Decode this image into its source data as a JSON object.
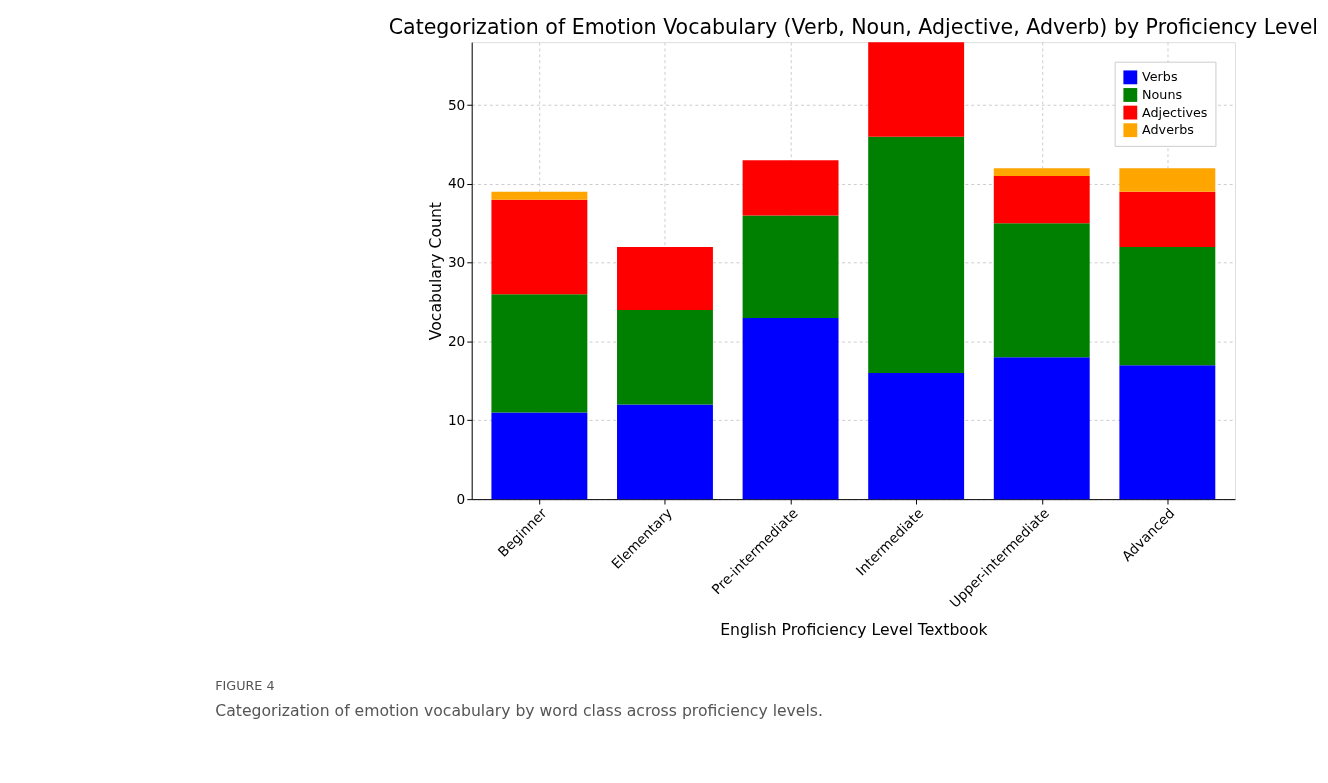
{
  "chart_data": {
    "type": "bar",
    "stacked": true,
    "title": "Categorization of Emotion Vocabulary (Verb, Noun, Adjective, Adverb) by Proficiency Level",
    "xlabel": "English Proficiency Level Textbook",
    "ylabel": "Vocabulary Count",
    "categories": [
      "Beginner",
      "Elementary",
      "Pre-intermediate",
      "Intermediate",
      "Upper-intermediate",
      "Advanced"
    ],
    "series": [
      {
        "name": "Verbs",
        "color": "#0000ff",
        "values": [
          11,
          12,
          23,
          16,
          18,
          17
        ]
      },
      {
        "name": "Nouns",
        "color": "#008000",
        "values": [
          15,
          12,
          13,
          30,
          17,
          15
        ]
      },
      {
        "name": "Adjectives",
        "color": "#ff0000",
        "values": [
          12,
          8,
          7,
          12,
          6,
          7
        ]
      },
      {
        "name": "Adverbs",
        "color": "#ffa500",
        "values": [
          1,
          null,
          null,
          null,
          1,
          3
        ]
      }
    ],
    "ylim": [
      0,
      58
    ],
    "yticks": [
      0,
      10,
      20,
      30,
      40,
      50
    ],
    "grid": true,
    "legend": "top right",
    "annotations": [
      "FIGURE 4",
      "Categorization of emotion vocabulary by word class across proficiency levels."
    ]
  }
}
